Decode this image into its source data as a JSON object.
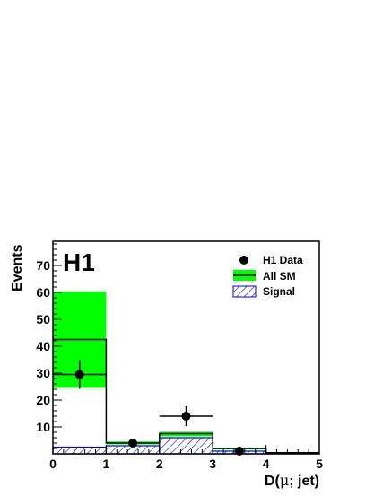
{
  "chart_data": {
    "type": "histogram",
    "experiment_label": "H1",
    "xlabel_prefix": "D(",
    "xlabel_mu": "μ",
    "xlabel_suffix": "; jet)",
    "ylabel": "Events",
    "xlim": [
      0,
      5
    ],
    "ylim": [
      0,
      79
    ],
    "x_ticks": [
      "0",
      "1",
      "2",
      "3",
      "4",
      "5"
    ],
    "y_ticks": [
      "10",
      "20",
      "30",
      "40",
      "50",
      "60",
      "70"
    ],
    "bin_edges": [
      0,
      1,
      2,
      3,
      4,
      5
    ],
    "all_sm": {
      "name": "All SM",
      "values": [
        42.5,
        4.0,
        7.5,
        2.0,
        0.4
      ],
      "uncertainty_low": [
        24.5,
        3.5,
        6.5,
        1.6,
        0.2
      ],
      "uncertainty_high": [
        60.3,
        4.6,
        8.2,
        2.3,
        0.5
      ],
      "band_color": "#00ff00",
      "line_color": "#000000"
    },
    "signal": {
      "name": "Signal",
      "values": [
        2.5,
        3.0,
        6.0,
        1.0,
        0.2
      ],
      "color": "#0000cc"
    },
    "data": {
      "name": "H1 Data",
      "points": [
        {
          "x": 0.5,
          "y": 29.5,
          "err": 5.3,
          "xerr": 0.5
        },
        {
          "x": 1.5,
          "y": 4.0,
          "err": 1.5,
          "xerr": 0
        },
        {
          "x": 2.5,
          "y": 14.0,
          "err": 3.7,
          "xerr": 0.5
        },
        {
          "x": 3.5,
          "y": 1.0,
          "err": 0.8,
          "xerr": 0
        }
      ],
      "color": "#000000"
    },
    "legend": [
      "H1 Data",
      "All SM",
      "Signal"
    ],
    "legend_position": "top-right"
  }
}
